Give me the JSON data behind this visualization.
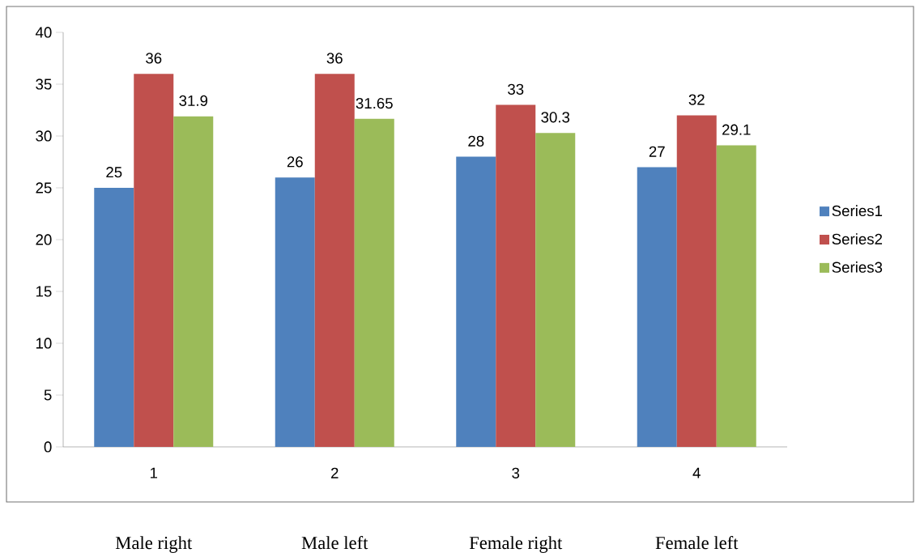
{
  "chart_data": {
    "type": "bar",
    "categories": [
      "1",
      "2",
      "3",
      "4"
    ],
    "series": [
      {
        "name": "Series1",
        "color": "#4f81bd",
        "values": [
          25,
          26,
          28,
          27
        ]
      },
      {
        "name": "Series2",
        "color": "#c0504d",
        "values": [
          36,
          36,
          33,
          32
        ]
      },
      {
        "name": "Series3",
        "color": "#9bbb59",
        "values": [
          31.9,
          31.65,
          30.3,
          29.1
        ]
      }
    ],
    "ylim": [
      0,
      40
    ],
    "yticks": [
      0,
      5,
      10,
      15,
      20,
      25,
      30,
      35,
      40
    ],
    "data_labels": true,
    "legend": "right",
    "annotations": [
      "Male right",
      "Male left",
      "Female right",
      "Female left"
    ]
  }
}
